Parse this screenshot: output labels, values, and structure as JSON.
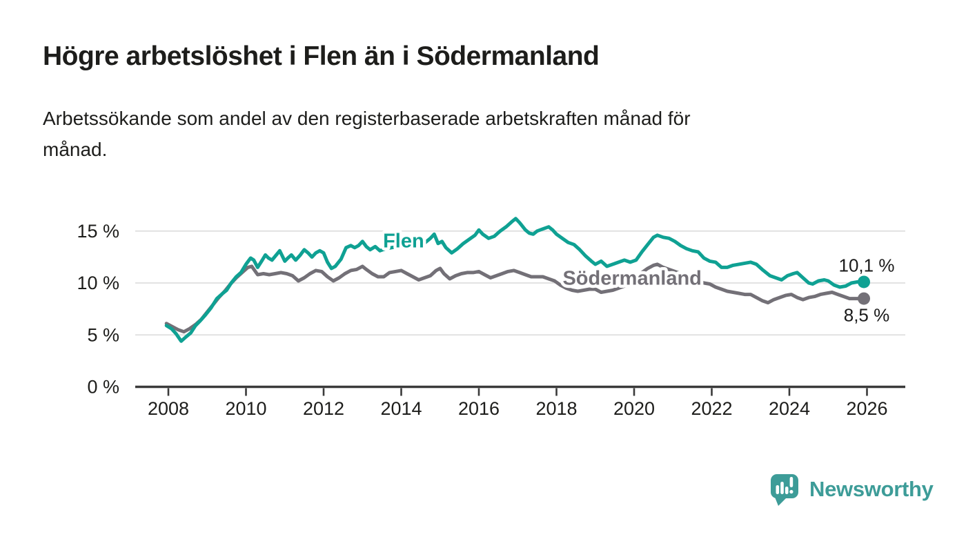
{
  "header": {
    "title": "Högre arbetslöshet i Flen än i Södermanland",
    "subtitle_lines": [
      "Arbetssökande som andel av den registerbaserade arbetskraften månad för",
      "månad."
    ]
  },
  "branding": {
    "name": "Newsworthy",
    "logo_icon": "speech-bubble-bar-chart-icon",
    "color": "#3d9c98"
  },
  "chart_data": {
    "type": "line",
    "title": "Högre arbetslöshet i Flen än i Södermanland",
    "subtitle": "Arbetssökande som andel av den registerbaserade arbetskraften månad för månad.",
    "unit": "%",
    "grid": "horizontal-only",
    "background": "#ffffff",
    "colors": {
      "grid_line": "#d9d9d9",
      "axis_line": "#3a3a3a",
      "tick_text": "#1d1d1b",
      "annotation_text": "#1a1a1a"
    },
    "x_axis": {
      "range_years": [
        2007.9,
        2027.0
      ],
      "ticks": [
        {
          "v": 2008,
          "label": "2008"
        },
        {
          "v": 2010,
          "label": "2010"
        },
        {
          "v": 2012,
          "label": "2012"
        },
        {
          "v": 2014,
          "label": "2014"
        },
        {
          "v": 2016,
          "label": "2016"
        },
        {
          "v": 2018,
          "label": "2018"
        },
        {
          "v": 2020,
          "label": "2020"
        },
        {
          "v": 2022,
          "label": "2022"
        },
        {
          "v": 2024,
          "label": "2024"
        },
        {
          "v": 2026,
          "label": "2026"
        }
      ]
    },
    "y_axis": {
      "range": [
        0,
        16.8
      ],
      "gridline_values": [
        5,
        10,
        15
      ],
      "ticks": [
        {
          "v": 0,
          "label": "0 %"
        },
        {
          "v": 5,
          "label": "5 %"
        },
        {
          "v": 10,
          "label": "10 %"
        },
        {
          "v": 15,
          "label": "15 %"
        }
      ]
    },
    "series": [
      {
        "name": "Södermanland",
        "color": "#737077",
        "end_value": 8.5,
        "end_label": "8,5 %",
        "end_label_position": "below-dot",
        "inline_label_at": {
          "year": 2019.95,
          "value": 10.5
        },
        "points": [
          [
            2007.95,
            6.1
          ],
          [
            2008.1,
            5.8
          ],
          [
            2008.25,
            5.5
          ],
          [
            2008.4,
            5.3
          ],
          [
            2008.55,
            5.6
          ],
          [
            2008.7,
            6.0
          ],
          [
            2008.85,
            6.5
          ],
          [
            2009.0,
            7.2
          ],
          [
            2009.15,
            7.9
          ],
          [
            2009.3,
            8.6
          ],
          [
            2009.45,
            9.2
          ],
          [
            2009.6,
            9.9
          ],
          [
            2009.75,
            10.5
          ],
          [
            2009.9,
            11.0
          ],
          [
            2010.05,
            11.5
          ],
          [
            2010.15,
            11.6
          ],
          [
            2010.3,
            10.8
          ],
          [
            2010.45,
            10.9
          ],
          [
            2010.6,
            10.8
          ],
          [
            2010.75,
            10.9
          ],
          [
            2010.9,
            11.0
          ],
          [
            2011.05,
            10.9
          ],
          [
            2011.2,
            10.7
          ],
          [
            2011.35,
            10.2
          ],
          [
            2011.5,
            10.5
          ],
          [
            2011.65,
            10.9
          ],
          [
            2011.8,
            11.2
          ],
          [
            2011.95,
            11.1
          ],
          [
            2012.1,
            10.6
          ],
          [
            2012.25,
            10.2
          ],
          [
            2012.4,
            10.5
          ],
          [
            2012.55,
            10.9
          ],
          [
            2012.7,
            11.2
          ],
          [
            2012.85,
            11.3
          ],
          [
            2013.0,
            11.6
          ],
          [
            2013.1,
            11.3
          ],
          [
            2013.25,
            10.9
          ],
          [
            2013.4,
            10.6
          ],
          [
            2013.55,
            10.6
          ],
          [
            2013.7,
            11.0
          ],
          [
            2013.85,
            11.1
          ],
          [
            2014.0,
            11.2
          ],
          [
            2014.15,
            10.9
          ],
          [
            2014.3,
            10.6
          ],
          [
            2014.45,
            10.3
          ],
          [
            2014.6,
            10.5
          ],
          [
            2014.75,
            10.7
          ],
          [
            2014.9,
            11.2
          ],
          [
            2015.0,
            11.4
          ],
          [
            2015.1,
            10.9
          ],
          [
            2015.25,
            10.4
          ],
          [
            2015.4,
            10.7
          ],
          [
            2015.55,
            10.9
          ],
          [
            2015.7,
            11.0
          ],
          [
            2015.85,
            11.0
          ],
          [
            2016.0,
            11.1
          ],
          [
            2016.15,
            10.8
          ],
          [
            2016.3,
            10.5
          ],
          [
            2016.45,
            10.7
          ],
          [
            2016.6,
            10.9
          ],
          [
            2016.75,
            11.1
          ],
          [
            2016.9,
            11.2
          ],
          [
            2017.05,
            11.0
          ],
          [
            2017.2,
            10.8
          ],
          [
            2017.35,
            10.6
          ],
          [
            2017.5,
            10.6
          ],
          [
            2017.65,
            10.6
          ],
          [
            2017.8,
            10.4
          ],
          [
            2017.95,
            10.2
          ],
          [
            2018.1,
            9.8
          ],
          [
            2018.25,
            9.5
          ],
          [
            2018.4,
            9.3
          ],
          [
            2018.55,
            9.2
          ],
          [
            2018.7,
            9.3
          ],
          [
            2018.85,
            9.4
          ],
          [
            2019.0,
            9.4
          ],
          [
            2019.15,
            9.1
          ],
          [
            2019.3,
            9.2
          ],
          [
            2019.45,
            9.3
          ],
          [
            2019.6,
            9.5
          ],
          [
            2019.75,
            9.7
          ],
          [
            2019.9,
            10.0
          ],
          [
            2020.05,
            10.4
          ],
          [
            2020.2,
            11.0
          ],
          [
            2020.35,
            11.4
          ],
          [
            2020.5,
            11.7
          ],
          [
            2020.6,
            11.8
          ],
          [
            2020.75,
            11.5
          ],
          [
            2020.9,
            11.3
          ],
          [
            2021.05,
            11.1
          ],
          [
            2021.2,
            10.9
          ],
          [
            2021.35,
            10.6
          ],
          [
            2021.5,
            10.4
          ],
          [
            2021.65,
            10.2
          ],
          [
            2021.8,
            10.0
          ],
          [
            2021.95,
            9.9
          ],
          [
            2022.1,
            9.6
          ],
          [
            2022.25,
            9.4
          ],
          [
            2022.4,
            9.2
          ],
          [
            2022.55,
            9.1
          ],
          [
            2022.7,
            9.0
          ],
          [
            2022.85,
            8.9
          ],
          [
            2023.0,
            8.9
          ],
          [
            2023.15,
            8.6
          ],
          [
            2023.3,
            8.3
          ],
          [
            2023.45,
            8.1
          ],
          [
            2023.6,
            8.4
          ],
          [
            2023.75,
            8.6
          ],
          [
            2023.9,
            8.8
          ],
          [
            2024.05,
            8.9
          ],
          [
            2024.2,
            8.6
          ],
          [
            2024.35,
            8.4
          ],
          [
            2024.5,
            8.6
          ],
          [
            2024.65,
            8.7
          ],
          [
            2024.8,
            8.9
          ],
          [
            2024.95,
            9.0
          ],
          [
            2025.1,
            9.1
          ],
          [
            2025.25,
            8.9
          ],
          [
            2025.4,
            8.7
          ],
          [
            2025.55,
            8.5
          ],
          [
            2025.7,
            8.5
          ],
          [
            2025.92,
            8.5
          ]
        ]
      },
      {
        "name": "Flen",
        "color": "#0fa193",
        "end_value": 10.1,
        "end_label": "10,1 %",
        "end_label_position": "above-dot",
        "inline_label_at": {
          "year": 2014.06,
          "value": 14.1
        },
        "points": [
          [
            2007.95,
            5.9
          ],
          [
            2008.08,
            5.6
          ],
          [
            2008.2,
            5.1
          ],
          [
            2008.33,
            4.4
          ],
          [
            2008.45,
            4.8
          ],
          [
            2008.58,
            5.2
          ],
          [
            2008.7,
            5.9
          ],
          [
            2008.83,
            6.4
          ],
          [
            2008.95,
            6.9
          ],
          [
            2009.1,
            7.6
          ],
          [
            2009.25,
            8.5
          ],
          [
            2009.4,
            9.0
          ],
          [
            2009.5,
            9.3
          ],
          [
            2009.62,
            10.0
          ],
          [
            2009.75,
            10.6
          ],
          [
            2009.87,
            11.0
          ],
          [
            2010.0,
            11.8
          ],
          [
            2010.12,
            12.4
          ],
          [
            2010.2,
            12.2
          ],
          [
            2010.3,
            11.5
          ],
          [
            2010.42,
            12.2
          ],
          [
            2010.5,
            12.7
          ],
          [
            2010.58,
            12.4
          ],
          [
            2010.67,
            12.2
          ],
          [
            2010.78,
            12.7
          ],
          [
            2010.87,
            13.1
          ],
          [
            2011.0,
            12.1
          ],
          [
            2011.08,
            12.4
          ],
          [
            2011.17,
            12.7
          ],
          [
            2011.28,
            12.2
          ],
          [
            2011.4,
            12.7
          ],
          [
            2011.5,
            13.2
          ],
          [
            2011.6,
            12.9
          ],
          [
            2011.7,
            12.5
          ],
          [
            2011.8,
            12.9
          ],
          [
            2011.9,
            13.1
          ],
          [
            2012.0,
            12.9
          ],
          [
            2012.1,
            12.0
          ],
          [
            2012.2,
            11.4
          ],
          [
            2012.3,
            11.6
          ],
          [
            2012.45,
            12.3
          ],
          [
            2012.58,
            13.4
          ],
          [
            2012.7,
            13.6
          ],
          [
            2012.8,
            13.4
          ],
          [
            2012.9,
            13.6
          ],
          [
            2013.0,
            14.0
          ],
          [
            2013.1,
            13.5
          ],
          [
            2013.2,
            13.2
          ],
          [
            2013.33,
            13.5
          ],
          [
            2013.45,
            13.1
          ],
          [
            2013.6,
            13.3
          ],
          [
            2013.75,
            13.4
          ],
          [
            2013.9,
            13.5
          ],
          [
            2014.05,
            13.6
          ],
          [
            2014.2,
            13.5
          ],
          [
            2014.35,
            13.6
          ],
          [
            2014.5,
            13.8
          ],
          [
            2014.62,
            13.9
          ],
          [
            2014.75,
            14.3
          ],
          [
            2014.85,
            14.7
          ],
          [
            2014.95,
            13.8
          ],
          [
            2015.05,
            14.0
          ],
          [
            2015.15,
            13.4
          ],
          [
            2015.3,
            12.9
          ],
          [
            2015.45,
            13.3
          ],
          [
            2015.6,
            13.8
          ],
          [
            2015.75,
            14.2
          ],
          [
            2015.9,
            14.6
          ],
          [
            2016.0,
            15.1
          ],
          [
            2016.1,
            14.7
          ],
          [
            2016.25,
            14.3
          ],
          [
            2016.4,
            14.5
          ],
          [
            2016.55,
            15.0
          ],
          [
            2016.7,
            15.4
          ],
          [
            2016.85,
            15.9
          ],
          [
            2016.95,
            16.2
          ],
          [
            2017.05,
            15.8
          ],
          [
            2017.2,
            15.1
          ],
          [
            2017.3,
            14.8
          ],
          [
            2017.4,
            14.7
          ],
          [
            2017.5,
            15.0
          ],
          [
            2017.65,
            15.2
          ],
          [
            2017.8,
            15.4
          ],
          [
            2017.9,
            15.1
          ],
          [
            2018.0,
            14.7
          ],
          [
            2018.15,
            14.3
          ],
          [
            2018.3,
            13.9
          ],
          [
            2018.45,
            13.7
          ],
          [
            2018.6,
            13.2
          ],
          [
            2018.75,
            12.6
          ],
          [
            2018.9,
            12.1
          ],
          [
            2019.0,
            11.8
          ],
          [
            2019.15,
            12.1
          ],
          [
            2019.3,
            11.6
          ],
          [
            2019.45,
            11.8
          ],
          [
            2019.6,
            12.0
          ],
          [
            2019.75,
            12.2
          ],
          [
            2019.9,
            12.0
          ],
          [
            2020.05,
            12.2
          ],
          [
            2020.2,
            13.0
          ],
          [
            2020.35,
            13.7
          ],
          [
            2020.5,
            14.4
          ],
          [
            2020.6,
            14.6
          ],
          [
            2020.75,
            14.4
          ],
          [
            2020.9,
            14.3
          ],
          [
            2021.05,
            14.0
          ],
          [
            2021.2,
            13.6
          ],
          [
            2021.35,
            13.3
          ],
          [
            2021.5,
            13.1
          ],
          [
            2021.65,
            13.0
          ],
          [
            2021.8,
            12.4
          ],
          [
            2021.95,
            12.1
          ],
          [
            2022.1,
            12.0
          ],
          [
            2022.25,
            11.5
          ],
          [
            2022.4,
            11.5
          ],
          [
            2022.55,
            11.7
          ],
          [
            2022.7,
            11.8
          ],
          [
            2022.85,
            11.9
          ],
          [
            2023.0,
            12.0
          ],
          [
            2023.15,
            11.8
          ],
          [
            2023.3,
            11.3
          ],
          [
            2023.5,
            10.7
          ],
          [
            2023.65,
            10.5
          ],
          [
            2023.8,
            10.3
          ],
          [
            2023.95,
            10.7
          ],
          [
            2024.1,
            10.9
          ],
          [
            2024.2,
            11.0
          ],
          [
            2024.35,
            10.5
          ],
          [
            2024.5,
            10.0
          ],
          [
            2024.6,
            9.9
          ],
          [
            2024.75,
            10.2
          ],
          [
            2024.9,
            10.3
          ],
          [
            2025.0,
            10.2
          ],
          [
            2025.15,
            9.8
          ],
          [
            2025.3,
            9.6
          ],
          [
            2025.45,
            9.7
          ],
          [
            2025.6,
            10.0
          ],
          [
            2025.75,
            10.1
          ],
          [
            2025.92,
            10.1
          ]
        ]
      }
    ]
  }
}
